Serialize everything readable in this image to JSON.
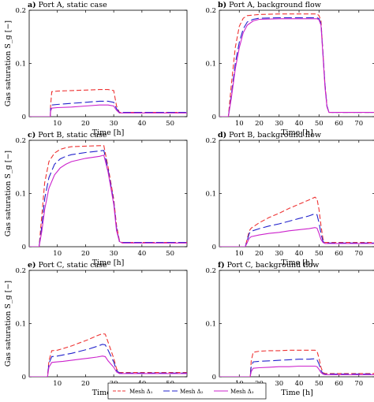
{
  "figure": {
    "ylabel": "Gas saturation S_g [−]",
    "xlabel": "Time [h]"
  },
  "legend": [
    {
      "label": "Mesh Δ₁",
      "color": "#ee3333",
      "dash": "dashed"
    },
    {
      "label": "Mesh Δ₂",
      "color": "#2222cc",
      "dash": "longdash"
    },
    {
      "label": "Mesh Δ₃",
      "color": "#cc22cc",
      "dash": "solid"
    }
  ],
  "chart_data": [
    {
      "type": "line",
      "title_prefix": "a)",
      "title_rest": " Port A, static case",
      "xlabel": "Time [h]",
      "ylabel": "Gas saturation S_g [−]",
      "xlim": [
        0,
        56
      ],
      "ylim": [
        0,
        0.2
      ],
      "xticks": [
        10,
        20,
        30,
        40,
        50
      ],
      "yticks": [
        0,
        0.1,
        0.2
      ],
      "grid": false,
      "series": [
        {
          "name": "Mesh Δ₁",
          "color": "#ee3333",
          "dash": "6,3",
          "x": [
            0,
            7.5,
            7.6,
            8,
            10,
            15,
            20,
            25,
            28,
            30,
            31,
            32,
            35,
            40,
            45,
            50,
            56
          ],
          "y": [
            0,
            0,
            0.02,
            0.047,
            0.048,
            0.049,
            0.05,
            0.051,
            0.051,
            0.049,
            0.02,
            0.008,
            0.008,
            0.008,
            0.008,
            0.008,
            0.008
          ]
        },
        {
          "name": "Mesh Δ₂",
          "color": "#2222cc",
          "dash": "10,4",
          "x": [
            0,
            7.5,
            7.6,
            8,
            10,
            15,
            20,
            25,
            28,
            30,
            31,
            32,
            35,
            40,
            45,
            50,
            56
          ],
          "y": [
            0,
            0,
            0.015,
            0.022,
            0.023,
            0.025,
            0.027,
            0.029,
            0.029,
            0.027,
            0.015,
            0.008,
            0.008,
            0.008,
            0.008,
            0.008,
            0.008
          ]
        },
        {
          "name": "Mesh Δ₃",
          "color": "#cc22cc",
          "dash": "",
          "x": [
            0,
            7.5,
            7.6,
            8,
            10,
            15,
            20,
            25,
            28,
            30,
            31,
            32,
            35,
            40,
            45,
            50,
            56
          ],
          "y": [
            0,
            0,
            0.01,
            0.016,
            0.017,
            0.018,
            0.02,
            0.022,
            0.022,
            0.02,
            0.012,
            0.007,
            0.007,
            0.007,
            0.007,
            0.007,
            0.007
          ]
        }
      ]
    },
    {
      "type": "line",
      "title_prefix": "b)",
      "title_rest": " Port A, background flow",
      "xlabel": "Time [h]",
      "ylabel": "",
      "xlim": [
        0,
        78
      ],
      "ylim": [
        0,
        0.2
      ],
      "xticks": [
        10,
        20,
        30,
        40,
        50,
        60,
        70
      ],
      "yticks": [
        0,
        0.1,
        0.2
      ],
      "grid": false,
      "series": [
        {
          "name": "Mesh Δ₁",
          "color": "#ee3333",
          "dash": "6,3",
          "x": [
            0,
            4.5,
            6,
            8,
            10,
            12,
            14,
            20,
            30,
            40,
            49,
            50,
            51,
            52,
            53,
            54,
            55,
            56,
            60,
            70,
            78
          ],
          "y": [
            0,
            0,
            0.06,
            0.13,
            0.17,
            0.185,
            0.19,
            0.192,
            0.193,
            0.193,
            0.193,
            0.19,
            0.18,
            0.12,
            0.06,
            0.02,
            0.008,
            0.008,
            0.008,
            0.008,
            0.008
          ]
        },
        {
          "name": "Mesh Δ₂",
          "color": "#2222cc",
          "dash": "10,4",
          "x": [
            0,
            4.5,
            6,
            8,
            10,
            12,
            14,
            17,
            20,
            30,
            40,
            49,
            50,
            51,
            52,
            53,
            54,
            55,
            56,
            60,
            70,
            78
          ],
          "y": [
            0,
            0,
            0.04,
            0.1,
            0.14,
            0.165,
            0.178,
            0.183,
            0.185,
            0.186,
            0.186,
            0.186,
            0.184,
            0.175,
            0.12,
            0.06,
            0.02,
            0.008,
            0.008,
            0.008,
            0.008,
            0.008
          ]
        },
        {
          "name": "Mesh Δ₃",
          "color": "#cc22cc",
          "dash": "",
          "x": [
            0,
            4.5,
            6,
            8,
            10,
            12,
            14,
            17,
            20,
            30,
            40,
            49,
            50,
            51,
            52,
            53,
            54,
            55,
            56,
            60,
            70,
            78
          ],
          "y": [
            0,
            0,
            0.035,
            0.09,
            0.13,
            0.158,
            0.172,
            0.18,
            0.183,
            0.184,
            0.184,
            0.184,
            0.182,
            0.172,
            0.115,
            0.055,
            0.018,
            0.008,
            0.008,
            0.008,
            0.008,
            0.008
          ]
        }
      ]
    },
    {
      "type": "line",
      "title_prefix": "c)",
      "title_rest": " Port B, static case",
      "xlabel": "Time [h]",
      "ylabel": "Gas saturation S_g [−]",
      "xlim": [
        0,
        56
      ],
      "ylim": [
        0,
        0.2
      ],
      "xticks": [
        10,
        20,
        30,
        40,
        50
      ],
      "yticks": [
        0,
        0.1,
        0.2
      ],
      "grid": false,
      "series": [
        {
          "name": "Mesh Δ₁",
          "color": "#ee3333",
          "dash": "6,3",
          "x": [
            0,
            3.5,
            4.5,
            5.5,
            7,
            9,
            11,
            13,
            15,
            20,
            25,
            26.5,
            28,
            30,
            31,
            32,
            33,
            40,
            50,
            56
          ],
          "y": [
            0,
            0,
            0.06,
            0.12,
            0.16,
            0.176,
            0.183,
            0.186,
            0.188,
            0.189,
            0.19,
            0.19,
            0.15,
            0.09,
            0.04,
            0.012,
            0.008,
            0.008,
            0.008,
            0.008
          ]
        },
        {
          "name": "Mesh Δ₂",
          "color": "#2222cc",
          "dash": "10,4",
          "x": [
            0,
            3.5,
            4.5,
            5.5,
            7,
            9,
            11,
            13,
            15,
            20,
            25,
            26.5,
            28,
            30,
            31,
            32,
            33,
            40,
            50,
            56
          ],
          "y": [
            0,
            0,
            0.04,
            0.09,
            0.13,
            0.155,
            0.165,
            0.17,
            0.173,
            0.177,
            0.18,
            0.181,
            0.145,
            0.085,
            0.035,
            0.01,
            0.008,
            0.008,
            0.008,
            0.008
          ]
        },
        {
          "name": "Mesh Δ₃",
          "color": "#cc22cc",
          "dash": "",
          "x": [
            0,
            3.5,
            4.5,
            5.5,
            7,
            9,
            11,
            13,
            15,
            20,
            25,
            26.5,
            28,
            30,
            31,
            32,
            33,
            40,
            50,
            56
          ],
          "y": [
            0,
            0,
            0.03,
            0.07,
            0.11,
            0.135,
            0.148,
            0.155,
            0.16,
            0.166,
            0.17,
            0.172,
            0.14,
            0.08,
            0.03,
            0.01,
            0.007,
            0.007,
            0.007,
            0.007
          ]
        }
      ]
    },
    {
      "type": "line",
      "title_prefix": "d)",
      "title_rest": " Port B, background flow",
      "xlabel": "Time [h]",
      "ylabel": "",
      "xlim": [
        0,
        78
      ],
      "ylim": [
        0,
        0.2
      ],
      "xticks": [
        10,
        20,
        30,
        40,
        50,
        60,
        70
      ],
      "yticks": [
        0,
        0.1,
        0.2
      ],
      "grid": false,
      "series": [
        {
          "name": "Mesh Δ₁",
          "color": "#ee3333",
          "dash": "6,3",
          "x": [
            0,
            13,
            14,
            15,
            16,
            20,
            25,
            30,
            35,
            40,
            45,
            48,
            49,
            50,
            51,
            52,
            53,
            55,
            60,
            70,
            78
          ],
          "y": [
            0,
            0,
            0.015,
            0.03,
            0.035,
            0.045,
            0.055,
            0.063,
            0.072,
            0.08,
            0.088,
            0.093,
            0.09,
            0.07,
            0.04,
            0.015,
            0.008,
            0.008,
            0.008,
            0.008,
            0.008
          ]
        },
        {
          "name": "Mesh Δ₂",
          "color": "#2222cc",
          "dash": "10,4",
          "x": [
            0,
            13,
            14,
            15,
            16,
            20,
            25,
            30,
            35,
            40,
            45,
            48,
            49,
            50,
            51,
            52,
            53,
            55,
            60,
            70,
            78
          ],
          "y": [
            0,
            0,
            0.012,
            0.025,
            0.029,
            0.034,
            0.039,
            0.043,
            0.048,
            0.053,
            0.058,
            0.062,
            0.06,
            0.045,
            0.025,
            0.01,
            0.007,
            0.007,
            0.007,
            0.007,
            0.007
          ]
        },
        {
          "name": "Mesh Δ₃",
          "color": "#cc22cc",
          "dash": "",
          "x": [
            0,
            13,
            14,
            15,
            16,
            20,
            25,
            30,
            35,
            40,
            45,
            48,
            49,
            50,
            51,
            52,
            53,
            55,
            60,
            70,
            78
          ],
          "y": [
            0,
            0,
            0.008,
            0.016,
            0.019,
            0.022,
            0.025,
            0.027,
            0.03,
            0.032,
            0.034,
            0.036,
            0.035,
            0.025,
            0.014,
            0.008,
            0.006,
            0.006,
            0.006,
            0.006,
            0.006
          ]
        }
      ]
    },
    {
      "type": "line",
      "title_prefix": "e)",
      "title_rest": " Port C, static case",
      "xlabel": "Time [h]",
      "ylabel": "Gas saturation S_g [−]",
      "xlim": [
        0,
        56
      ],
      "ylim": [
        0,
        0.2
      ],
      "xticks": [
        10,
        20,
        30,
        40,
        50
      ],
      "yticks": [
        0,
        0.1,
        0.2
      ],
      "grid": false,
      "series": [
        {
          "name": "Mesh Δ₁",
          "color": "#ee3333",
          "dash": "6,3",
          "x": [
            0,
            6.5,
            7,
            8,
            10,
            12,
            15,
            18,
            21,
            24,
            26,
            27,
            28,
            30,
            31,
            32,
            33,
            40,
            50,
            56
          ],
          "y": [
            0,
            0,
            0.03,
            0.049,
            0.05,
            0.053,
            0.058,
            0.064,
            0.07,
            0.077,
            0.081,
            0.08,
            0.065,
            0.035,
            0.015,
            0.008,
            0.008,
            0.008,
            0.008,
            0.008
          ]
        },
        {
          "name": "Mesh Δ₂",
          "color": "#2222cc",
          "dash": "10,4",
          "x": [
            0,
            6.5,
            7,
            8,
            10,
            12,
            15,
            18,
            21,
            24,
            26,
            27,
            28,
            30,
            31,
            32,
            33,
            40,
            50,
            56
          ],
          "y": [
            0,
            0,
            0.025,
            0.038,
            0.039,
            0.041,
            0.044,
            0.048,
            0.052,
            0.057,
            0.061,
            0.06,
            0.05,
            0.028,
            0.012,
            0.007,
            0.007,
            0.007,
            0.007,
            0.007
          ]
        },
        {
          "name": "Mesh Δ₃",
          "color": "#cc22cc",
          "dash": "",
          "x": [
            0,
            6.5,
            7,
            8,
            10,
            12,
            15,
            18,
            21,
            24,
            26,
            27,
            28,
            30,
            31,
            32,
            33,
            40,
            50,
            56
          ],
          "y": [
            0,
            0,
            0.018,
            0.027,
            0.028,
            0.029,
            0.031,
            0.033,
            0.035,
            0.037,
            0.039,
            0.038,
            0.03,
            0.018,
            0.009,
            0.006,
            0.006,
            0.006,
            0.006,
            0.006
          ]
        }
      ]
    },
    {
      "type": "line",
      "title_prefix": "f)",
      "title_rest": " Port C, background flow",
      "xlabel": "Time [h]",
      "ylabel": "",
      "xlim": [
        0,
        78
      ],
      "ylim": [
        0,
        0.2
      ],
      "xticks": [
        10,
        20,
        30,
        40,
        50,
        60,
        70
      ],
      "yticks": [
        0,
        0.1,
        0.2
      ],
      "grid": false,
      "series": [
        {
          "name": "Mesh Δ₁",
          "color": "#ee3333",
          "dash": "6,3",
          "x": [
            0,
            15.5,
            16,
            17,
            20,
            25,
            30,
            35,
            40,
            45,
            48,
            49,
            50,
            51,
            52,
            53,
            55,
            60,
            70,
            78
          ],
          "y": [
            0,
            0,
            0.03,
            0.046,
            0.048,
            0.049,
            0.049,
            0.05,
            0.05,
            0.05,
            0.05,
            0.048,
            0.035,
            0.018,
            0.008,
            0.006,
            0.006,
            0.006,
            0.006,
            0.006
          ]
        },
        {
          "name": "Mesh Δ₂",
          "color": "#2222cc",
          "dash": "10,4",
          "x": [
            0,
            15.5,
            16,
            17,
            20,
            25,
            30,
            35,
            40,
            45,
            48,
            49,
            50,
            51,
            52,
            53,
            55,
            60,
            70,
            78
          ],
          "y": [
            0,
            0,
            0.02,
            0.028,
            0.029,
            0.03,
            0.031,
            0.032,
            0.033,
            0.033,
            0.034,
            0.032,
            0.024,
            0.012,
            0.006,
            0.005,
            0.005,
            0.005,
            0.005,
            0.005
          ]
        },
        {
          "name": "Mesh Δ₃",
          "color": "#cc22cc",
          "dash": "",
          "x": [
            0,
            15.5,
            16,
            17,
            20,
            25,
            30,
            35,
            40,
            45,
            48,
            49,
            50,
            51,
            52,
            53,
            55,
            60,
            70,
            78
          ],
          "y": [
            0,
            0,
            0.01,
            0.016,
            0.017,
            0.018,
            0.019,
            0.019,
            0.02,
            0.02,
            0.02,
            0.019,
            0.014,
            0.008,
            0.005,
            0.004,
            0.004,
            0.004,
            0.004,
            0.004
          ]
        }
      ]
    }
  ]
}
